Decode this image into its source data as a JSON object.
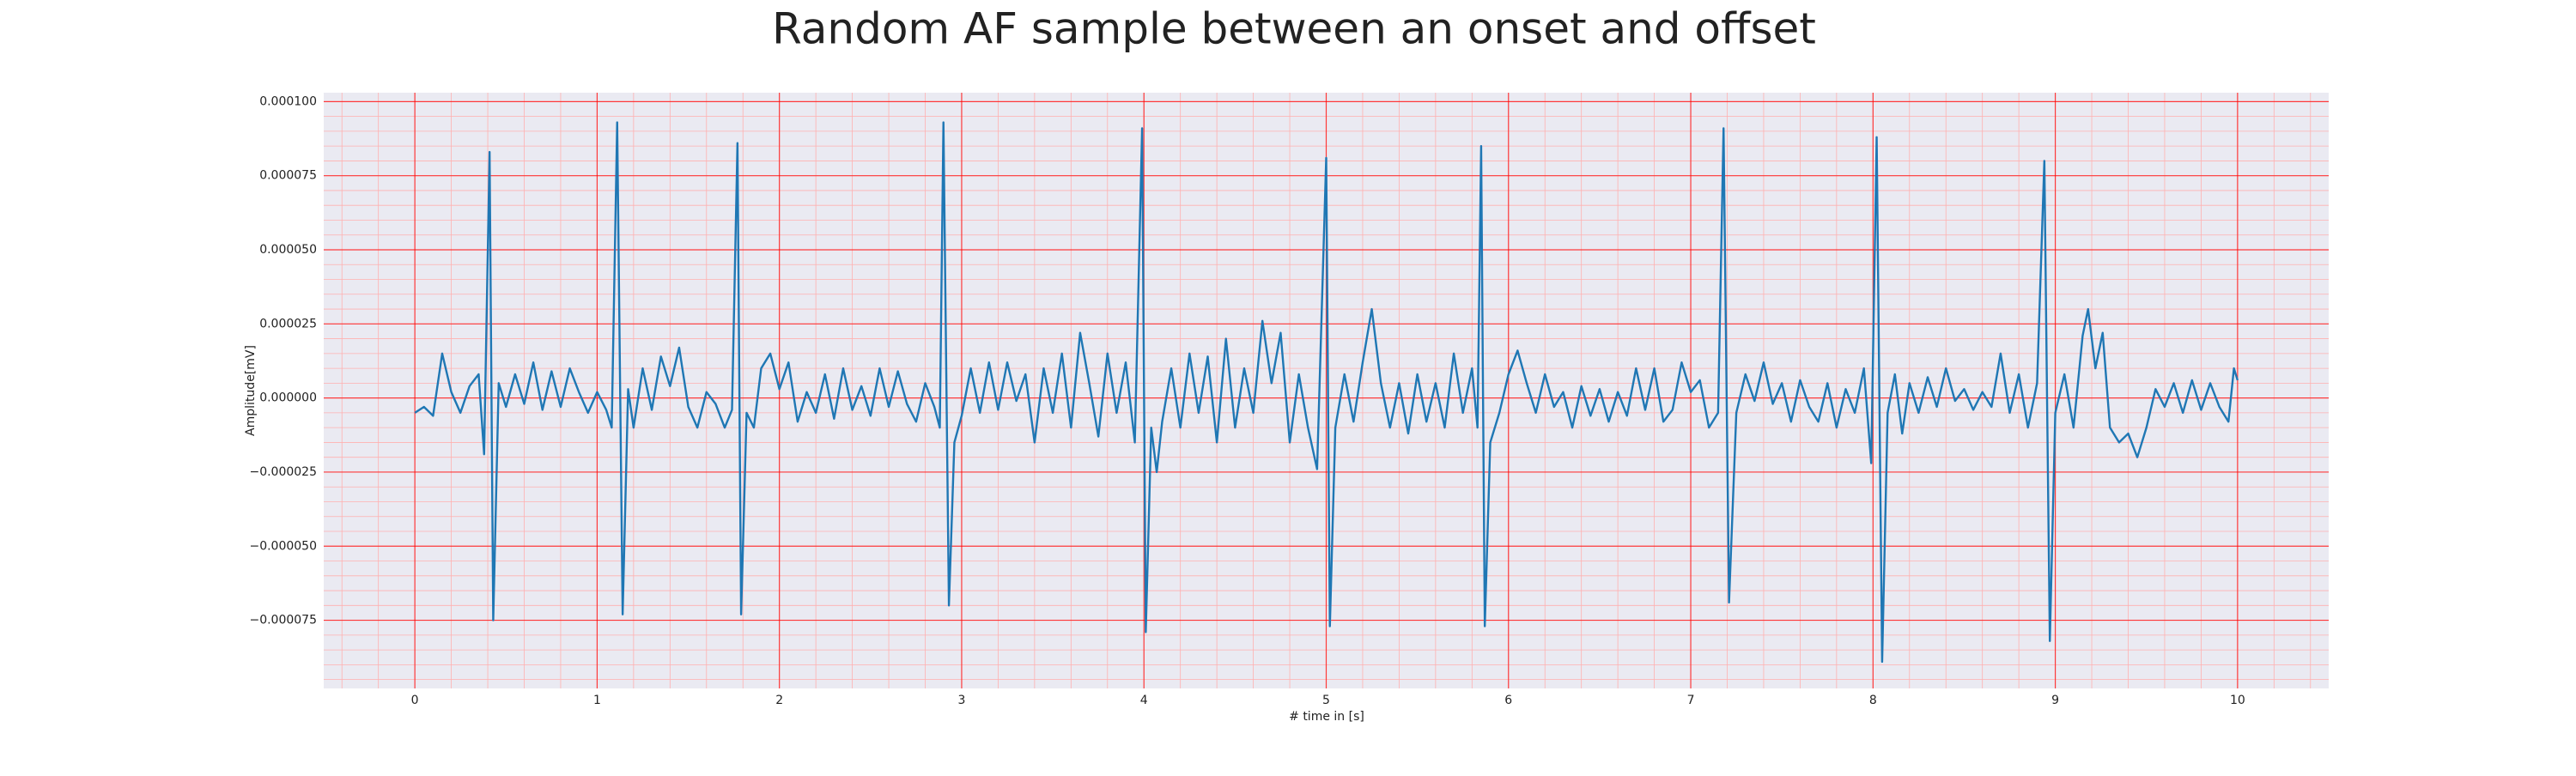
{
  "chart_data": {
    "type": "line",
    "title": "Random AF sample between an onset and offset",
    "xlabel": "# time in [s]",
    "ylabel": "Amplitude[mV]",
    "color": "#1f77b4",
    "background": "#eaeaf2",
    "grid": true,
    "grid_color": "#ff0000",
    "minor_grid": true,
    "minor_grid_color": "#ffb0b0",
    "minor_divisions": 5,
    "xlim": [
      -0.5,
      10.5
    ],
    "ylim": [
      -9.8e-05,
      0.000103
    ],
    "xticks": [
      0,
      1,
      2,
      3,
      4,
      5,
      6,
      7,
      8,
      9,
      10
    ],
    "yticks": [
      {
        "value": -7.5e-05,
        "label": "−0.000075"
      },
      {
        "value": -5e-05,
        "label": "−0.000050"
      },
      {
        "value": -2.5e-05,
        "label": "−0.000025"
      },
      {
        "value": 0,
        "label": "0.000000"
      },
      {
        "value": 2.5e-05,
        "label": "0.000025"
      },
      {
        "value": 5e-05,
        "label": "0.000050"
      },
      {
        "value": 7.5e-05,
        "label": "0.000075"
      },
      {
        "value": 0.0001,
        "label": "0.000100"
      }
    ],
    "x": [
      0,
      0.05,
      0.1,
      0.15,
      0.2,
      0.25,
      0.3,
      0.35,
      0.38,
      0.41,
      0.43,
      0.46,
      0.5,
      0.55,
      0.6,
      0.65,
      0.7,
      0.75,
      0.8,
      0.85,
      0.9,
      0.95,
      1.0,
      1.05,
      1.08,
      1.11,
      1.14,
      1.17,
      1.2,
      1.25,
      1.3,
      1.35,
      1.4,
      1.45,
      1.5,
      1.55,
      1.6,
      1.65,
      1.7,
      1.74,
      1.77,
      1.79,
      1.82,
      1.86,
      1.9,
      1.95,
      2.0,
      2.05,
      2.1,
      2.15,
      2.2,
      2.25,
      2.3,
      2.35,
      2.4,
      2.45,
      2.5,
      2.55,
      2.6,
      2.65,
      2.7,
      2.75,
      2.8,
      2.85,
      2.88,
      2.9,
      2.93,
      2.96,
      3.0,
      3.05,
      3.1,
      3.15,
      3.2,
      3.25,
      3.3,
      3.35,
      3.4,
      3.45,
      3.5,
      3.55,
      3.6,
      3.65,
      3.7,
      3.75,
      3.8,
      3.85,
      3.9,
      3.95,
      3.99,
      4.01,
      4.04,
      4.07,
      4.1,
      4.15,
      4.2,
      4.25,
      4.3,
      4.35,
      4.4,
      4.45,
      4.5,
      4.55,
      4.6,
      4.65,
      4.7,
      4.75,
      4.8,
      4.85,
      4.9,
      4.95,
      5.0,
      5.02,
      5.05,
      5.1,
      5.15,
      5.2,
      5.25,
      5.3,
      5.35,
      5.4,
      5.45,
      5.5,
      5.55,
      5.6,
      5.65,
      5.7,
      5.75,
      5.8,
      5.83,
      5.85,
      5.87,
      5.9,
      5.95,
      6.0,
      6.05,
      6.1,
      6.15,
      6.2,
      6.25,
      6.3,
      6.35,
      6.4,
      6.45,
      6.5,
      6.55,
      6.6,
      6.65,
      6.7,
      6.75,
      6.8,
      6.85,
      6.9,
      6.95,
      7.0,
      7.05,
      7.1,
      7.15,
      7.18,
      7.21,
      7.25,
      7.3,
      7.35,
      7.4,
      7.45,
      7.5,
      7.55,
      7.6,
      7.65,
      7.7,
      7.75,
      7.8,
      7.85,
      7.9,
      7.95,
      7.99,
      8.02,
      8.05,
      8.08,
      8.12,
      8.16,
      8.2,
      8.25,
      8.3,
      8.35,
      8.4,
      8.45,
      8.5,
      8.55,
      8.6,
      8.65,
      8.7,
      8.75,
      8.8,
      8.85,
      8.9,
      8.94,
      8.97,
      9.0,
      9.05,
      9.1,
      9.15,
      9.18,
      9.22,
      9.26,
      9.3,
      9.35,
      9.4,
      9.45,
      9.5,
      9.55,
      9.6,
      9.65,
      9.7,
      9.75,
      9.8,
      9.85,
      9.9,
      9.95,
      9.98,
      10.0
    ],
    "values": [
      -5e-06,
      -3e-06,
      -6e-06,
      1.5e-05,
      2e-06,
      -5e-06,
      4e-06,
      8e-06,
      -1.9e-05,
      8.3e-05,
      -7.5e-05,
      5e-06,
      -3e-06,
      8e-06,
      -2e-06,
      1.2e-05,
      -4e-06,
      9e-06,
      -3e-06,
      1e-05,
      2e-06,
      -5e-06,
      2e-06,
      -4e-06,
      -1e-05,
      9.3e-05,
      -7.3e-05,
      3e-06,
      -1e-05,
      1e-05,
      -4e-06,
      1.4e-05,
      4e-06,
      1.7e-05,
      -3e-06,
      -1e-05,
      2e-06,
      -2e-06,
      -1e-05,
      -4e-06,
      8.6e-05,
      -7.3e-05,
      -5e-06,
      -1e-05,
      1e-05,
      1.5e-05,
      3e-06,
      1.2e-05,
      -8e-06,
      2e-06,
      -5e-06,
      8e-06,
      -7e-06,
      1e-05,
      -4e-06,
      4e-06,
      -6e-06,
      1e-05,
      -3e-06,
      9e-06,
      -2e-06,
      -8e-06,
      5e-06,
      -3e-06,
      -1e-05,
      9.3e-05,
      -7e-05,
      -1.5e-05,
      -6e-06,
      1e-05,
      -5e-06,
      1.2e-05,
      -4e-06,
      1.2e-05,
      -1e-06,
      8e-06,
      -1.5e-05,
      1e-05,
      -5e-06,
      1.5e-05,
      -1e-05,
      2.2e-05,
      5e-06,
      -1.3e-05,
      1.5e-05,
      -5e-06,
      1.2e-05,
      -1.5e-05,
      9.1e-05,
      -7.9e-05,
      -1e-05,
      -2.5e-05,
      -8e-06,
      1e-05,
      -1e-05,
      1.5e-05,
      -5e-06,
      1.4e-05,
      -1.5e-05,
      2e-05,
      -1e-05,
      1e-05,
      -5e-06,
      2.6e-05,
      5e-06,
      2.2e-05,
      -1.5e-05,
      8e-06,
      -1e-05,
      -2.4e-05,
      8.1e-05,
      -7.7e-05,
      -1e-05,
      8e-06,
      -8e-06,
      1.2e-05,
      3e-05,
      5e-06,
      -1e-05,
      5e-06,
      -1.2e-05,
      8e-06,
      -8e-06,
      5e-06,
      -1e-05,
      1.5e-05,
      -5e-06,
      1e-05,
      -1e-05,
      8.5e-05,
      -7.7e-05,
      -1.5e-05,
      -5e-06,
      8e-06,
      1.6e-05,
      5e-06,
      -5e-06,
      8e-06,
      -3e-06,
      2e-06,
      -1e-05,
      4e-06,
      -6e-06,
      3e-06,
      -8e-06,
      2e-06,
      -6e-06,
      1e-05,
      -4e-06,
      1e-05,
      -8e-06,
      -4e-06,
      1.2e-05,
      2e-06,
      6e-06,
      -1e-05,
      -5e-06,
      9.1e-05,
      -6.9e-05,
      -5e-06,
      8e-06,
      -1e-06,
      1.2e-05,
      -2e-06,
      5e-06,
      -8e-06,
      6e-06,
      -3e-06,
      -8e-06,
      5e-06,
      -1e-05,
      3e-06,
      -5e-06,
      1e-05,
      -2.2e-05,
      8.8e-05,
      -8.9e-05,
      -5e-06,
      8e-06,
      -1.2e-05,
      5e-06,
      -5e-06,
      7e-06,
      -3e-06,
      1e-05,
      -1e-06,
      3e-06,
      -4e-06,
      2e-06,
      -3e-06,
      1.5e-05,
      -5e-06,
      8e-06,
      -1e-05,
      5e-06,
      8e-05,
      -8.2e-05,
      -5e-06,
      8e-06,
      -1e-05,
      2.1e-05,
      3e-05,
      1e-05,
      2.2e-05,
      -1e-05,
      -1.5e-05,
      -1.2e-05,
      -2e-05,
      -1e-05,
      3e-06,
      -3e-06,
      5e-06,
      -5e-06,
      6e-06,
      -4e-06,
      5e-06,
      -3e-06,
      -8e-06,
      1e-05,
      6e-06
    ]
  }
}
